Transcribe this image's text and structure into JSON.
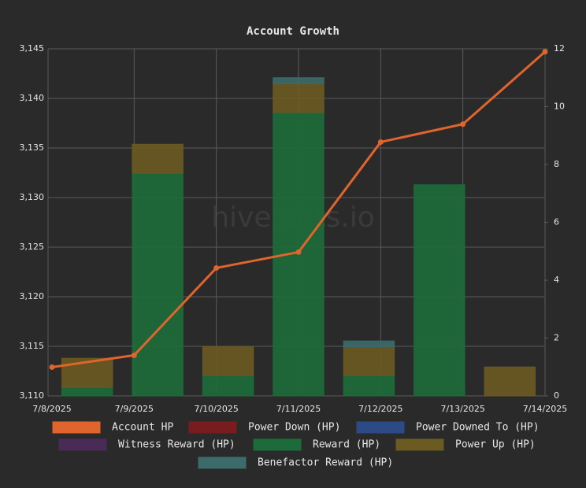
{
  "chart_data": {
    "type": "bar-line",
    "title": "Account Growth",
    "watermark": "hivestats.io",
    "categories": [
      "7/8/2025",
      "7/9/2025",
      "7/10/2025",
      "7/11/2025",
      "7/12/2025",
      "7/13/2025",
      "7/14/2025"
    ],
    "series": [
      {
        "name": "Account HP",
        "type": "line",
        "axis": "y",
        "color": "#e0652c",
        "values": [
          3112.9,
          3114.1,
          3122.9,
          3124.5,
          3135.6,
          3137.4,
          3144.7
        ]
      },
      {
        "name": "Power Down (HP)",
        "type": "bar",
        "axis": "y2",
        "color": "#7a1c1f",
        "values": [
          0,
          0,
          0,
          0,
          0,
          0,
          0
        ]
      },
      {
        "name": "Power Downed To (HP)",
        "type": "bar",
        "axis": "y2",
        "color": "#2c4a85",
        "values": [
          0,
          0,
          0,
          0,
          0,
          0,
          0
        ]
      },
      {
        "name": "Witness Reward (HP)",
        "type": "bar",
        "axis": "y2",
        "color": "#4a2b58",
        "values": [
          0,
          0,
          0,
          0,
          0,
          0,
          0
        ]
      },
      {
        "name": "Reward (HP)",
        "type": "bar",
        "axis": "y2",
        "color": "#1d6b3a",
        "values": [
          0.3,
          7.7,
          0.7,
          9.8,
          0.7,
          7.3,
          0
        ]
      },
      {
        "name": "Power Up (HP)",
        "type": "bar",
        "axis": "y2",
        "color": "#6b5a22",
        "values": [
          1.0,
          1.0,
          1.0,
          1.0,
          1.0,
          0,
          1.0
        ]
      },
      {
        "name": "Benefactor Reward (HP)",
        "type": "bar",
        "axis": "y2",
        "color": "#3b6b6a",
        "values": [
          0,
          0,
          0,
          0.2,
          0.2,
          0,
          0
        ]
      }
    ],
    "ylim": [
      3110,
      3145
    ],
    "yticks": [
      {
        "value": 3110,
        "label": "3,110"
      },
      {
        "value": 3115,
        "label": "3,115"
      },
      {
        "value": 3120,
        "label": "3,120"
      },
      {
        "value": 3125,
        "label": "3,125"
      },
      {
        "value": 3130,
        "label": "3,130"
      },
      {
        "value": 3135,
        "label": "3,135"
      },
      {
        "value": 3140,
        "label": "3,140"
      },
      {
        "value": 3145,
        "label": "3,145"
      }
    ],
    "y2lim": [
      0,
      12
    ],
    "y2ticks": [
      0,
      2,
      4,
      6,
      8,
      10,
      12
    ],
    "grid": true,
    "stacked": true,
    "legend": "bottom"
  }
}
